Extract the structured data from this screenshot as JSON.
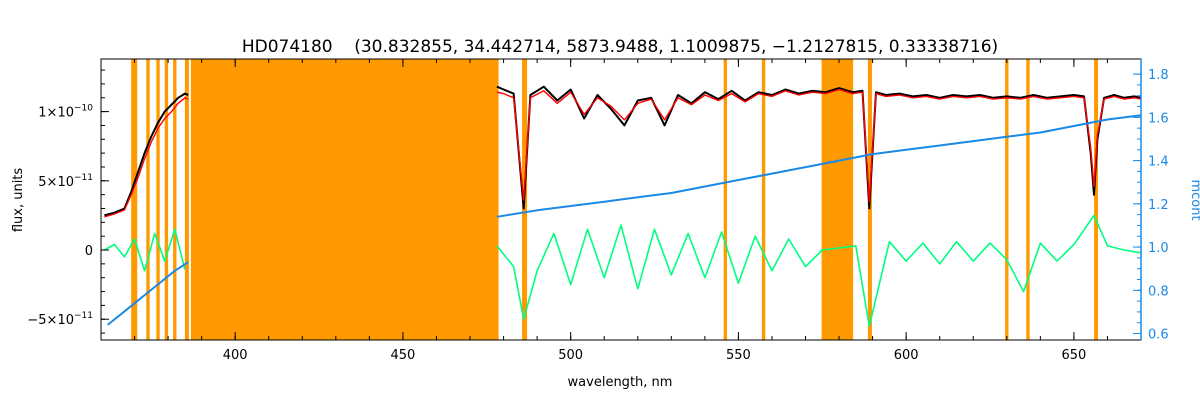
{
  "chart_data": {
    "type": "line",
    "title": "HD074180    (30.832855, 34.442714, 5873.9488, 1.1009875, −1.2127815, 0.33338716)",
    "xlabel": "wavelength, nm",
    "ylabel": "flux, units",
    "y2label": "mcont",
    "xlim": [
      360,
      670
    ],
    "ylim": [
      -6.5e-11,
      1.38e-10
    ],
    "y2lim": [
      0.57,
      1.87
    ],
    "x_ticks": [
      400,
      450,
      500,
      550,
      600,
      650
    ],
    "x_tick_labels": [
      "400",
      "450",
      "500",
      "550",
      "600",
      "650"
    ],
    "y_ticks": [
      -5e-11,
      0,
      5e-11,
      1e-10
    ],
    "y_tick_labels": [
      {
        "base": "−5×10",
        "exp": "−11"
      },
      {
        "base": "0",
        "exp": ""
      },
      {
        "base": "5×10",
        "exp": "−11"
      },
      {
        "base": "1×10",
        "exp": "−10"
      }
    ],
    "y2_ticks": [
      0.6,
      0.8,
      1.0,
      1.2,
      1.4,
      1.6,
      1.8
    ],
    "y2_tick_labels": [
      "0.6",
      "0.8",
      "1.0",
      "1.2",
      "1.4",
      "1.6",
      "1.8"
    ],
    "masked_regions": [
      [
        369.0,
        370.8
      ],
      [
        373.5,
        374.5
      ],
      [
        376.5,
        377.5
      ],
      [
        379.0,
        380.0
      ],
      [
        381.5,
        382.5
      ],
      [
        385.0,
        386.2
      ],
      [
        386.8,
        478.5
      ],
      [
        485.5,
        487.0
      ],
      [
        545.6,
        546.6
      ],
      [
        557.0,
        558.0
      ],
      [
        574.8,
        584.2
      ],
      [
        588.6,
        589.8
      ],
      [
        629.5,
        630.5
      ],
      [
        635.8,
        636.8
      ],
      [
        656.0,
        657.2
      ]
    ],
    "series": [
      {
        "role": "continuum",
        "x": [
          362,
          366,
          370,
          374,
          378,
          382,
          386,
          478,
          490,
          500,
          510,
          520,
          530,
          540,
          550,
          560,
          570,
          580,
          590,
          600,
          610,
          620,
          630,
          640,
          650,
          660,
          670
        ],
        "y": [
          0.64,
          0.69,
          0.74,
          0.79,
          0.84,
          0.89,
          0.93,
          1.14,
          1.17,
          1.19,
          1.21,
          1.23,
          1.25,
          1.28,
          1.31,
          1.34,
          1.37,
          1.4,
          1.43,
          1.45,
          1.47,
          1.49,
          1.51,
          1.53,
          1.56,
          1.59,
          1.61
        ]
      },
      {
        "role": "observed",
        "x": [
          361,
          364,
          367,
          369,
          371,
          373,
          375,
          377,
          379,
          381,
          383,
          385,
          386,
          478,
          480,
          483,
          486,
          488,
          492,
          496,
          500,
          504,
          508,
          512,
          516,
          520,
          524,
          528,
          532,
          536,
          540,
          544,
          548,
          552,
          556,
          560,
          564,
          568,
          572,
          576,
          580,
          584,
          587,
          589,
          591,
          594,
          598,
          602,
          606,
          610,
          614,
          618,
          622,
          626,
          630,
          634,
          638,
          642,
          646,
          650,
          653,
          655,
          656,
          657,
          659,
          662,
          665,
          668,
          670
        ],
        "y": [
          2.5e-11,
          2.7e-11,
          3e-11,
          4.2e-11,
          5.6e-11,
          7e-11,
          8.2e-11,
          9.2e-11,
          1e-10,
          1.05e-10,
          1.1e-10,
          1.13e-10,
          1.12e-10,
          1.18e-10,
          1.16e-10,
          1.13e-10,
          3e-11,
          1.12e-10,
          1.18e-10,
          1.08e-10,
          1.16e-10,
          9.5e-11,
          1.12e-10,
          1.02e-10,
          9e-11,
          1.08e-10,
          1.1e-10,
          9e-11,
          1.12e-10,
          1.06e-10,
          1.14e-10,
          1.09e-10,
          1.15e-10,
          1.08e-10,
          1.14e-10,
          1.12e-10,
          1.16e-10,
          1.13e-10,
          1.15e-10,
          1.14e-10,
          1.17e-10,
          1.14e-10,
          1.15e-10,
          3e-11,
          1.14e-10,
          1.12e-10,
          1.13e-10,
          1.11e-10,
          1.12e-10,
          1.1e-10,
          1.12e-10,
          1.11e-10,
          1.12e-10,
          1.1e-10,
          1.11e-10,
          1.1e-10,
          1.12e-10,
          1.1e-10,
          1.11e-10,
          1.12e-10,
          1.11e-10,
          7e-11,
          4e-11,
          8e-11,
          1.1e-10,
          1.12e-10,
          1.1e-10,
          1.11e-10,
          1.1e-10
        ]
      },
      {
        "role": "model",
        "x": [
          361,
          364,
          367,
          369,
          371,
          373,
          375,
          377,
          379,
          381,
          383,
          385,
          386,
          478,
          480,
          483,
          486,
          488,
          492,
          496,
          500,
          504,
          508,
          512,
          516,
          520,
          524,
          528,
          532,
          536,
          540,
          544,
          548,
          552,
          556,
          560,
          564,
          568,
          572,
          576,
          580,
          584,
          587,
          589,
          591,
          594,
          598,
          602,
          606,
          610,
          614,
          618,
          622,
          626,
          630,
          634,
          638,
          642,
          646,
          650,
          653,
          655,
          656,
          657,
          659,
          662,
          665,
          668,
          670
        ],
        "y": [
          2.4e-11,
          2.6e-11,
          2.9e-11,
          4e-11,
          5.2e-11,
          6.6e-11,
          7.8e-11,
          8.8e-11,
          9.5e-11,
          1e-10,
          1.06e-10,
          1.1e-10,
          1.09e-10,
          1.14e-10,
          1.13e-10,
          1.1e-10,
          3.6e-11,
          1.1e-10,
          1.15e-10,
          1.06e-10,
          1.14e-10,
          9.8e-11,
          1.1e-10,
          1.04e-10,
          9.4e-11,
          1.06e-10,
          1.09e-10,
          9.4e-11,
          1.1e-10,
          1.05e-10,
          1.12e-10,
          1.08e-10,
          1.13e-10,
          1.07e-10,
          1.13e-10,
          1.11e-10,
          1.15e-10,
          1.12e-10,
          1.14e-10,
          1.13e-10,
          1.16e-10,
          1.13e-10,
          1.14e-10,
          3.5e-11,
          1.13e-10,
          1.11e-10,
          1.12e-10,
          1.1e-10,
          1.11e-10,
          1.09e-10,
          1.11e-10,
          1.1e-10,
          1.11e-10,
          1.09e-10,
          1.1e-10,
          1.09e-10,
          1.11e-10,
          1.09e-10,
          1.1e-10,
          1.11e-10,
          1.1e-10,
          7.4e-11,
          4.6e-11,
          8.3e-11,
          1.09e-10,
          1.11e-10,
          1.09e-10,
          1.1e-10,
          1.09e-10
        ]
      },
      {
        "role": "residual",
        "x": [
          361,
          364,
          367,
          370,
          373,
          376,
          379,
          382,
          385,
          478,
          483,
          486,
          490,
          495,
          500,
          505,
          510,
          515,
          520,
          525,
          530,
          535,
          540,
          545,
          550,
          555,
          560,
          565,
          570,
          575,
          585,
          589,
          595,
          600,
          605,
          610,
          615,
          620,
          625,
          630,
          635,
          640,
          645,
          650,
          656,
          660,
          665,
          670
        ],
        "y": [
          0.0,
          4e-12,
          -5e-12,
          8e-12,
          -1.5e-11,
          1.2e-11,
          -8e-12,
          1.5e-11,
          -1.4e-11,
          3e-12,
          -1.2e-11,
          -5e-11,
          -1.5e-11,
          1.2e-11,
          -2.5e-11,
          1.5e-11,
          -2e-11,
          1.8e-11,
          -2.8e-11,
          1.5e-11,
          -1.8e-11,
          1.2e-11,
          -2e-11,
          1.3e-11,
          -2.4e-11,
          1e-11,
          -1.5e-11,
          8e-12,
          -1.2e-11,
          0.0,
          3e-12,
          -5.5e-11,
          6e-12,
          -8e-12,
          5e-12,
          -1e-11,
          6e-12,
          -8e-12,
          5e-12,
          -7e-12,
          -3e-11,
          5e-12,
          -8e-12,
          4e-12,
          2.5e-11,
          3e-12,
          0.0,
          -2e-12
        ]
      }
    ]
  },
  "colors": {
    "axis": "#000000",
    "mask": "#ff9900",
    "observed": "#000000",
    "model": "#ff0000",
    "masked_model": "#ffff00",
    "residual": "#00ff7f",
    "continuum": "#1a8ae6",
    "right_axis": "#1a8ae6"
  }
}
